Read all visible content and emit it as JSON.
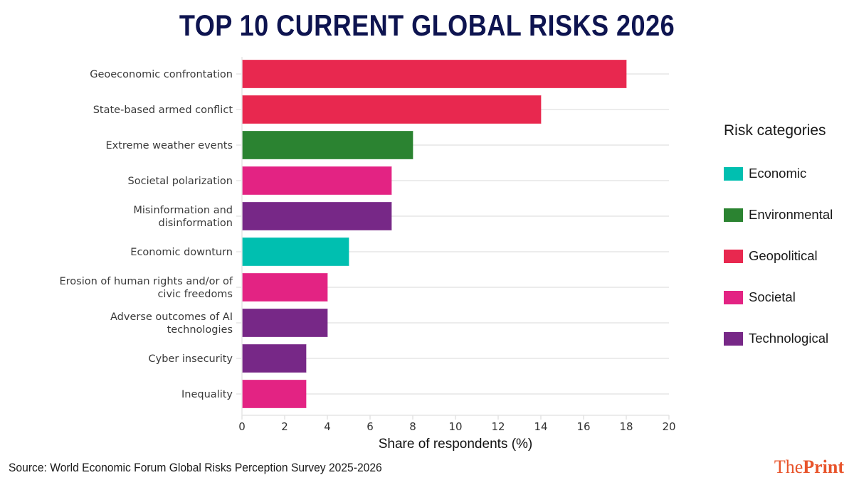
{
  "header": {
    "title": "TOP 10 CURRENT GLOBAL RISKS 2026"
  },
  "chart_data": {
    "type": "bar",
    "orientation": "horizontal",
    "title": "TOP 10 CURRENT GLOBAL RISKS 2026",
    "xlabel": "Share of respondents (%)",
    "ylabel": "",
    "xlim": [
      0,
      20
    ],
    "xticks": [
      0,
      2,
      4,
      6,
      8,
      10,
      12,
      14,
      16,
      18,
      20
    ],
    "grid": true,
    "legend_title": "Risk categories",
    "legend_position": "right",
    "legend": [
      {
        "name": "Economic",
        "color": "#00bfb0"
      },
      {
        "name": "Environmental",
        "color": "#2b8331"
      },
      {
        "name": "Geopolitical",
        "color": "#e8284f"
      },
      {
        "name": "Societal",
        "color": "#e32383"
      },
      {
        "name": "Technological",
        "color": "#772887"
      }
    ],
    "categories": [
      [
        "Geoeconomic confrontation"
      ],
      [
        "State-based armed conflict"
      ],
      [
        "Extreme weather events"
      ],
      [
        "Societal polarization"
      ],
      [
        "Misinformation and",
        "disinformation"
      ],
      [
        "Economic downturn"
      ],
      [
        "Erosion of human rights and/or of",
        "civic freedoms"
      ],
      [
        "Adverse outcomes of AI",
        "technologies"
      ],
      [
        "Cyber insecurity"
      ],
      [
        "Inequality"
      ]
    ],
    "values": [
      18,
      14,
      8,
      7,
      7,
      5,
      4,
      4,
      3,
      3
    ],
    "bar_categories": [
      "Geopolitical",
      "Geopolitical",
      "Environmental",
      "Societal",
      "Technological",
      "Economic",
      "Societal",
      "Technological",
      "Technological",
      "Societal"
    ]
  },
  "footer": {
    "source": "Source: World Economic Forum Global Risks Perception Survey 2025-2026",
    "logo_the": "The",
    "logo_print": "Print"
  }
}
